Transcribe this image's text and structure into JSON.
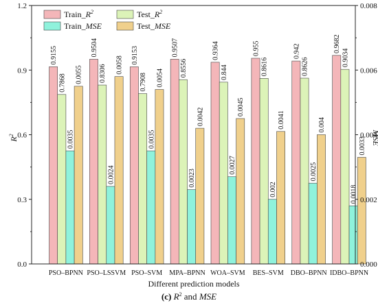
{
  "colors": {
    "train_r2": "#f4b6b9",
    "test_r2": "#dcf3b8",
    "train_mse": "#8ff2dc",
    "test_mse": "#f0d08c",
    "bar_stroke": "#444444",
    "axis": "#222222"
  },
  "chart_data": {
    "type": "bar",
    "categories": [
      "PSO–BPNN",
      "PSO–LSSVM",
      "PSO–SVM",
      "MPA–BPNN",
      "WOA–SVM",
      "BES–SVM",
      "DBO–BPNN",
      "IDBO–BPNN"
    ],
    "series": [
      {
        "name": "Train_R²",
        "axis": "left",
        "values": [
          0.9155,
          0.9504,
          0.9153,
          0.9507,
          0.9364,
          0.955,
          0.942,
          0.9682
        ],
        "labels": [
          "0.9155",
          "0.9504",
          "0.9153",
          "0.9507",
          "0.9364",
          "0.955",
          "0.942",
          "0.9682"
        ]
      },
      {
        "name": "Test_R²",
        "axis": "left",
        "values": [
          0.7868,
          0.8306,
          0.7908,
          0.8556,
          0.844,
          0.8616,
          0.8626,
          0.9034
        ],
        "labels": [
          "0.7868",
          "0.8306",
          "0.7908",
          "0.8556",
          "0.844",
          "0.8616",
          "0.8626",
          "0.9034"
        ]
      },
      {
        "name": "Train_MSE",
        "axis": "right",
        "values": [
          0.0035,
          0.0024,
          0.0035,
          0.0023,
          0.0027,
          0.002,
          0.0025,
          0.0018
        ],
        "labels": [
          "0.0035",
          "0.0024",
          "0.0035",
          "0.0023",
          "0.0027",
          "0.002",
          "0.0025",
          "0.0018"
        ]
      },
      {
        "name": "Test_MSE",
        "axis": "right",
        "values": [
          0.0055,
          0.0058,
          0.0054,
          0.0042,
          0.0045,
          0.0041,
          0.004,
          0.0033
        ],
        "labels": [
          "0.0055",
          "0.0058",
          "0.0054",
          "0.0042",
          "0.0045",
          "0.0041",
          "0.004",
          "0.0033"
        ]
      }
    ],
    "legend": [
      {
        "prefix": "Train_",
        "main": "R",
        "sup": "2",
        "italic": true,
        "series": 0
      },
      {
        "prefix": "Test_",
        "main": "R",
        "sup": "2",
        "italic": true,
        "series": 1
      },
      {
        "prefix": "Train_",
        "main": "MSE",
        "sup": "",
        "italic": true,
        "series": 2
      },
      {
        "prefix": "Test_",
        "main": "MSE",
        "sup": "",
        "italic": true,
        "series": 3
      }
    ],
    "xlabel": "Different prediction models",
    "ylabel_left": {
      "main": "R",
      "sup": "2"
    },
    "ylabel_right": "MSE",
    "ylim_left": [
      0,
      1.2
    ],
    "ylim_right": [
      0,
      0.008
    ],
    "yticks_left": [
      "0.0",
      "0.3",
      "0.6",
      "0.9",
      "1.2"
    ],
    "yticks_right": [
      "0.000",
      "0.002",
      "0.004",
      "0.006",
      "0.008"
    ],
    "legend_position": "top-left",
    "grid": false
  },
  "caption": {
    "tag": "(c)",
    "r": "R",
    "sup": "2",
    "and": " and ",
    "mse": "MSE"
  }
}
